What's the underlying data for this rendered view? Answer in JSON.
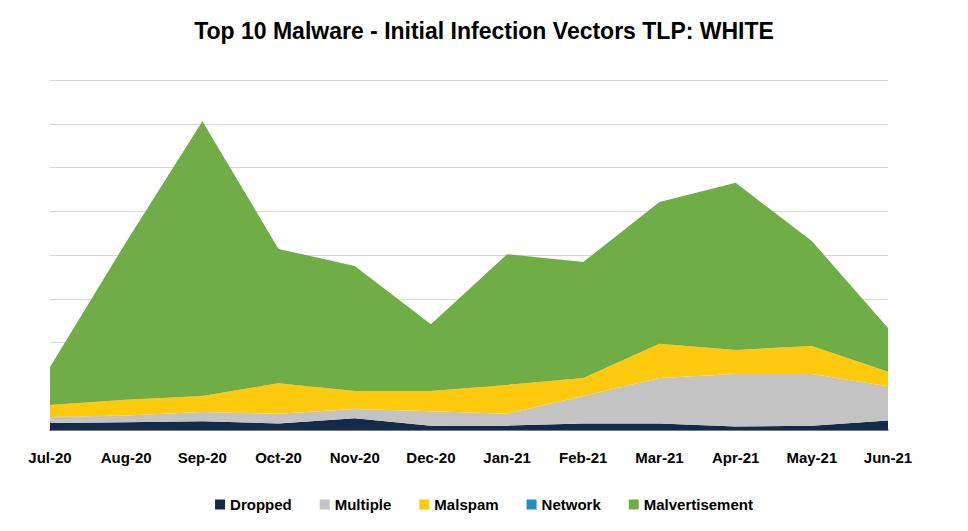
{
  "chart_data": {
    "type": "area",
    "title": "Top 10 Malware - Initial Infection Vectors TLP: WHITE",
    "categories": [
      "Jul-20",
      "Aug-20",
      "Sep-20",
      "Oct-20",
      "Nov-20",
      "Dec-20",
      "Jan-21",
      "Feb-21",
      "Mar-21",
      "Apr-21",
      "May-21",
      "Jun-21"
    ],
    "series": [
      {
        "name": "Dropped",
        "color": "#132b4a",
        "values": [
          0.16,
          0.18,
          0.2,
          0.15,
          0.27,
          0.1,
          0.1,
          0.15,
          0.15,
          0.08,
          0.1,
          0.22
        ]
      },
      {
        "name": "Multiple",
        "color": "#c3c3c3",
        "values": [
          0.14,
          0.15,
          0.21,
          0.22,
          0.21,
          0.33,
          0.27,
          0.63,
          1.04,
          1.2,
          1.18,
          0.78
        ]
      },
      {
        "name": "Malspam",
        "color": "#ffc90e",
        "values": [
          0.27,
          0.36,
          0.37,
          0.7,
          0.41,
          0.46,
          0.66,
          0.41,
          0.78,
          0.55,
          0.64,
          0.33
        ]
      },
      {
        "name": "Network",
        "color": "#1f8fc8",
        "values": [
          0,
          0,
          0,
          0,
          0,
          0,
          0,
          0,
          0,
          0,
          0,
          0
        ]
      },
      {
        "name": "Malvertisement",
        "color": "#70ad47",
        "values": [
          0.87,
          3.61,
          6.28,
          3.07,
          2.86,
          1.53,
          2.99,
          2.65,
          3.24,
          3.82,
          2.4,
          1.0
        ]
      }
    ],
    "ylim": [
      0,
      8
    ],
    "yticks": [
      0,
      1,
      2,
      3,
      4,
      5,
      6,
      7,
      8
    ],
    "tick_labels": "x",
    "stacked": true,
    "grid": true,
    "legend": "bottom"
  }
}
